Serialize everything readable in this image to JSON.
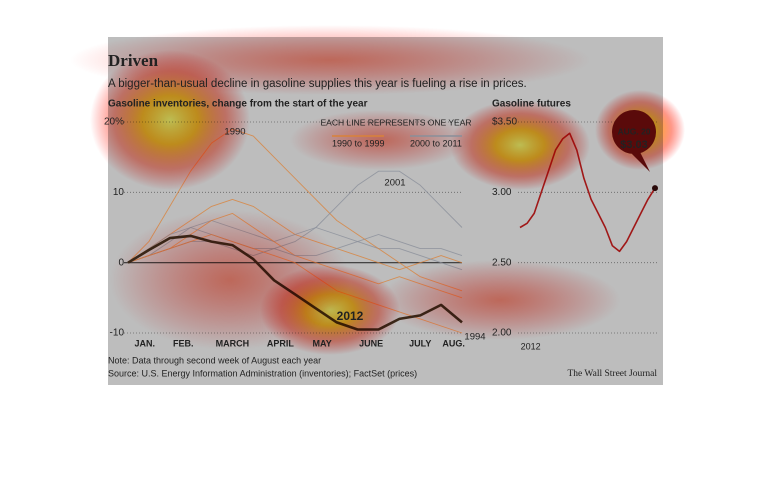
{
  "header": {
    "title": "Driven",
    "subtitle": "A bigger-than-usual decline in gasoline supplies this year is fueling a rise in prices."
  },
  "chart_data": [
    {
      "type": "line",
      "title": "Gasoline inventories, change from the start of the year",
      "legend_note": "EACH LINE REPRESENTS ONE YEAR",
      "legend": [
        {
          "label": "1990 to 1999",
          "color": "#d9823a"
        },
        {
          "label": "2000 to 2011",
          "color": "#8a8f9a"
        }
      ],
      "x": [
        0,
        2,
        4,
        6,
        8,
        10,
        12,
        14,
        16,
        18,
        20,
        22,
        24,
        26,
        28,
        30,
        32
      ],
      "xlim": [
        0,
        32
      ],
      "xticks": [
        {
          "value": 1.6,
          "label": "JAN."
        },
        {
          "value": 5.3,
          "label": "FEB."
        },
        {
          "value": 10,
          "label": "MARCH"
        },
        {
          "value": 14.6,
          "label": "APRIL"
        },
        {
          "value": 18.6,
          "label": "MAY"
        },
        {
          "value": 23.3,
          "label": "JUNE"
        },
        {
          "value": 28,
          "label": "JULY"
        },
        {
          "value": 31.2,
          "label": "AUG."
        }
      ],
      "ylim": [
        -10,
        20
      ],
      "yticks": [
        {
          "value": 20,
          "label": "20%"
        },
        10,
        0,
        -10
      ],
      "grid": true,
      "series": [
        {
          "color": "#d9823a",
          "values": [
            0,
            2,
            4,
            6,
            8,
            9,
            8,
            6,
            4,
            3,
            2,
            1,
            0,
            -1,
            0,
            1,
            0
          ]
        },
        {
          "color": "#8a8f9a",
          "values": [
            0,
            1,
            3,
            5,
            6,
            5,
            4,
            3,
            4,
            5,
            4,
            3,
            2,
            2,
            1,
            0,
            -1
          ]
        },
        {
          "color": "#d9823a",
          "values": [
            0,
            1,
            2,
            4,
            6,
            7,
            5,
            3,
            1,
            0,
            -1,
            -2,
            -3,
            -2,
            -3,
            -4,
            -5
          ]
        },
        {
          "color": "#8a8f9a",
          "values": [
            0,
            2,
            4,
            5,
            4,
            3,
            2,
            2,
            1,
            1,
            2,
            3,
            4,
            3,
            2,
            2,
            1
          ]
        },
        {
          "name": "1990",
          "color": "#d9823a",
          "values": [
            0,
            3,
            8,
            13,
            17,
            19,
            18,
            15,
            12,
            9,
            6,
            4,
            2,
            0,
            -2,
            -3,
            -4
          ]
        },
        {
          "name": "2001",
          "color": "#8a8f9a",
          "values": [
            0,
            1,
            2,
            3,
            3,
            2,
            1,
            2,
            3,
            5,
            8,
            11,
            13,
            13,
            11,
            8,
            5
          ]
        },
        {
          "name": "1994",
          "color": "#d9823a",
          "values": [
            0,
            1,
            2,
            3,
            4,
            3,
            2,
            1,
            0,
            -2,
            -4,
            -5,
            -6,
            -7,
            -8,
            -9,
            -10
          ]
        },
        {
          "name": "2012",
          "color": "#3a2a1a",
          "values": [
            0,
            1.8,
            3.5,
            3.8,
            3.0,
            2.5,
            0.5,
            -2.5,
            -4.5,
            -6.5,
            -8.5,
            -9.5,
            -9.5,
            -8,
            -7.5,
            -6,
            -8.5
          ]
        }
      ]
    },
    {
      "type": "line",
      "title": "Gasoline futures",
      "x": [
        0,
        1,
        2,
        3,
        4,
        5,
        6,
        7,
        8,
        9,
        10,
        11,
        12,
        13,
        14,
        15,
        16,
        17,
        18,
        19
      ],
      "xlim": [
        0,
        19
      ],
      "xticks": [
        {
          "value": 1.5,
          "label": "2012"
        }
      ],
      "ylim": [
        2,
        3.5
      ],
      "yticks": [
        {
          "value": 3.5,
          "label": "$3.50"
        },
        {
          "value": 3,
          "label": "3.00"
        },
        {
          "value": 2.5,
          "label": "2.50"
        },
        {
          "value": 2,
          "label": "2.00"
        }
      ],
      "grid": true,
      "annotation": "AUG. 20",
      "series": [
        {
          "color": "#a01818",
          "values": [
            2.75,
            2.78,
            2.85,
            3.0,
            3.15,
            3.3,
            3.38,
            3.42,
            3.3,
            3.1,
            2.95,
            2.85,
            2.75,
            2.62,
            2.58,
            2.65,
            2.75,
            2.85,
            2.95,
            3.03
          ],
          "value_labels": [
            null,
            null,
            null,
            null,
            null,
            null,
            null,
            null,
            null,
            null,
            null,
            null,
            null,
            null,
            null,
            null,
            null,
            null,
            null,
            "$3.03"
          ]
        }
      ]
    }
  ],
  "footer": {
    "note": "Note: Data through second week of August each year",
    "source": "Source: U.S. Energy Information Administration (inventories); FactSet (prices)",
    "credit": "The Wall Street Journal"
  }
}
